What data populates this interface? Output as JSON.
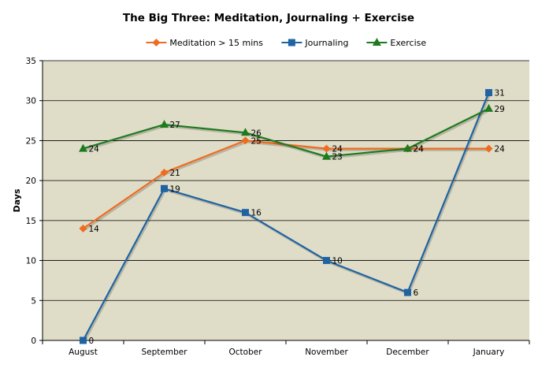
{
  "chart_data": {
    "type": "line",
    "title": "The Big Three: Meditation, Journaling + Exercise",
    "xlabel": "",
    "ylabel": "Days",
    "categories": [
      "August",
      "September",
      "October",
      "November",
      "December",
      "January"
    ],
    "ylim": [
      0,
      35
    ],
    "yticks": [
      0,
      5,
      10,
      15,
      20,
      25,
      30,
      35
    ],
    "grid": true,
    "legend_position": "top",
    "plot_background": "#dfddc8",
    "series": [
      {
        "name": "Meditation > 15 mins",
        "color": "#ef6b1f",
        "marker": "diamond",
        "values": [
          14,
          21,
          25,
          24,
          24,
          24
        ]
      },
      {
        "name": "Journaling",
        "color": "#1f63a3",
        "marker": "square",
        "values": [
          0,
          19,
          16,
          10,
          6,
          31
        ]
      },
      {
        "name": "Exercise",
        "color": "#1e7a1e",
        "marker": "triangle",
        "values": [
          24,
          27,
          26,
          23,
          24,
          29
        ]
      }
    ]
  }
}
